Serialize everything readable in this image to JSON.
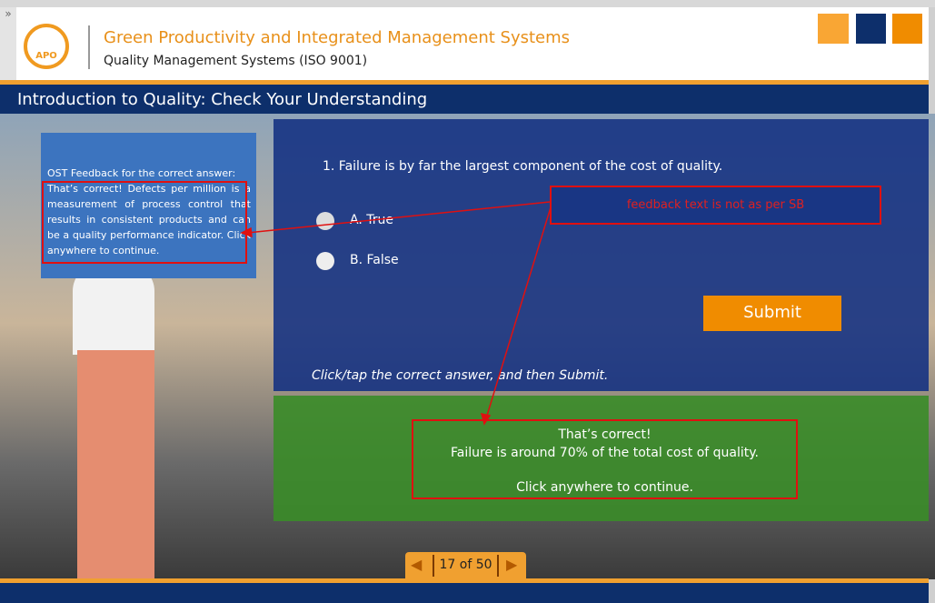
{
  "browser": {
    "expand": "»"
  },
  "header": {
    "logo": "APO",
    "title": "Green Productivity and Integrated Management Systems",
    "subtitle": "Quality Management Systems (ISO 9001)"
  },
  "slide": {
    "title": "Introduction to Quality: Check Your Understanding"
  },
  "ost": {
    "heading": "OST Feedback for the correct answer:",
    "text": "That’s correct! Defects per million is a measurement of process control that results in consistent products and can be a quality performance indicator. Click anywhere to continue."
  },
  "question": {
    "text": "1. Failure is by far the largest component of the cost of quality.",
    "options": [
      "A. True",
      "B. False"
    ],
    "submit": "Submit",
    "instruction": "Click/tap the correct answer, and then Submit."
  },
  "annotation": "feedback text is not as per SB",
  "feedback": {
    "line1": "That’s correct!",
    "line2": "Failure is around 70% of the total cost of quality.",
    "line3": "Click anywhere to continue."
  },
  "nav": {
    "page": "17 of 50"
  }
}
